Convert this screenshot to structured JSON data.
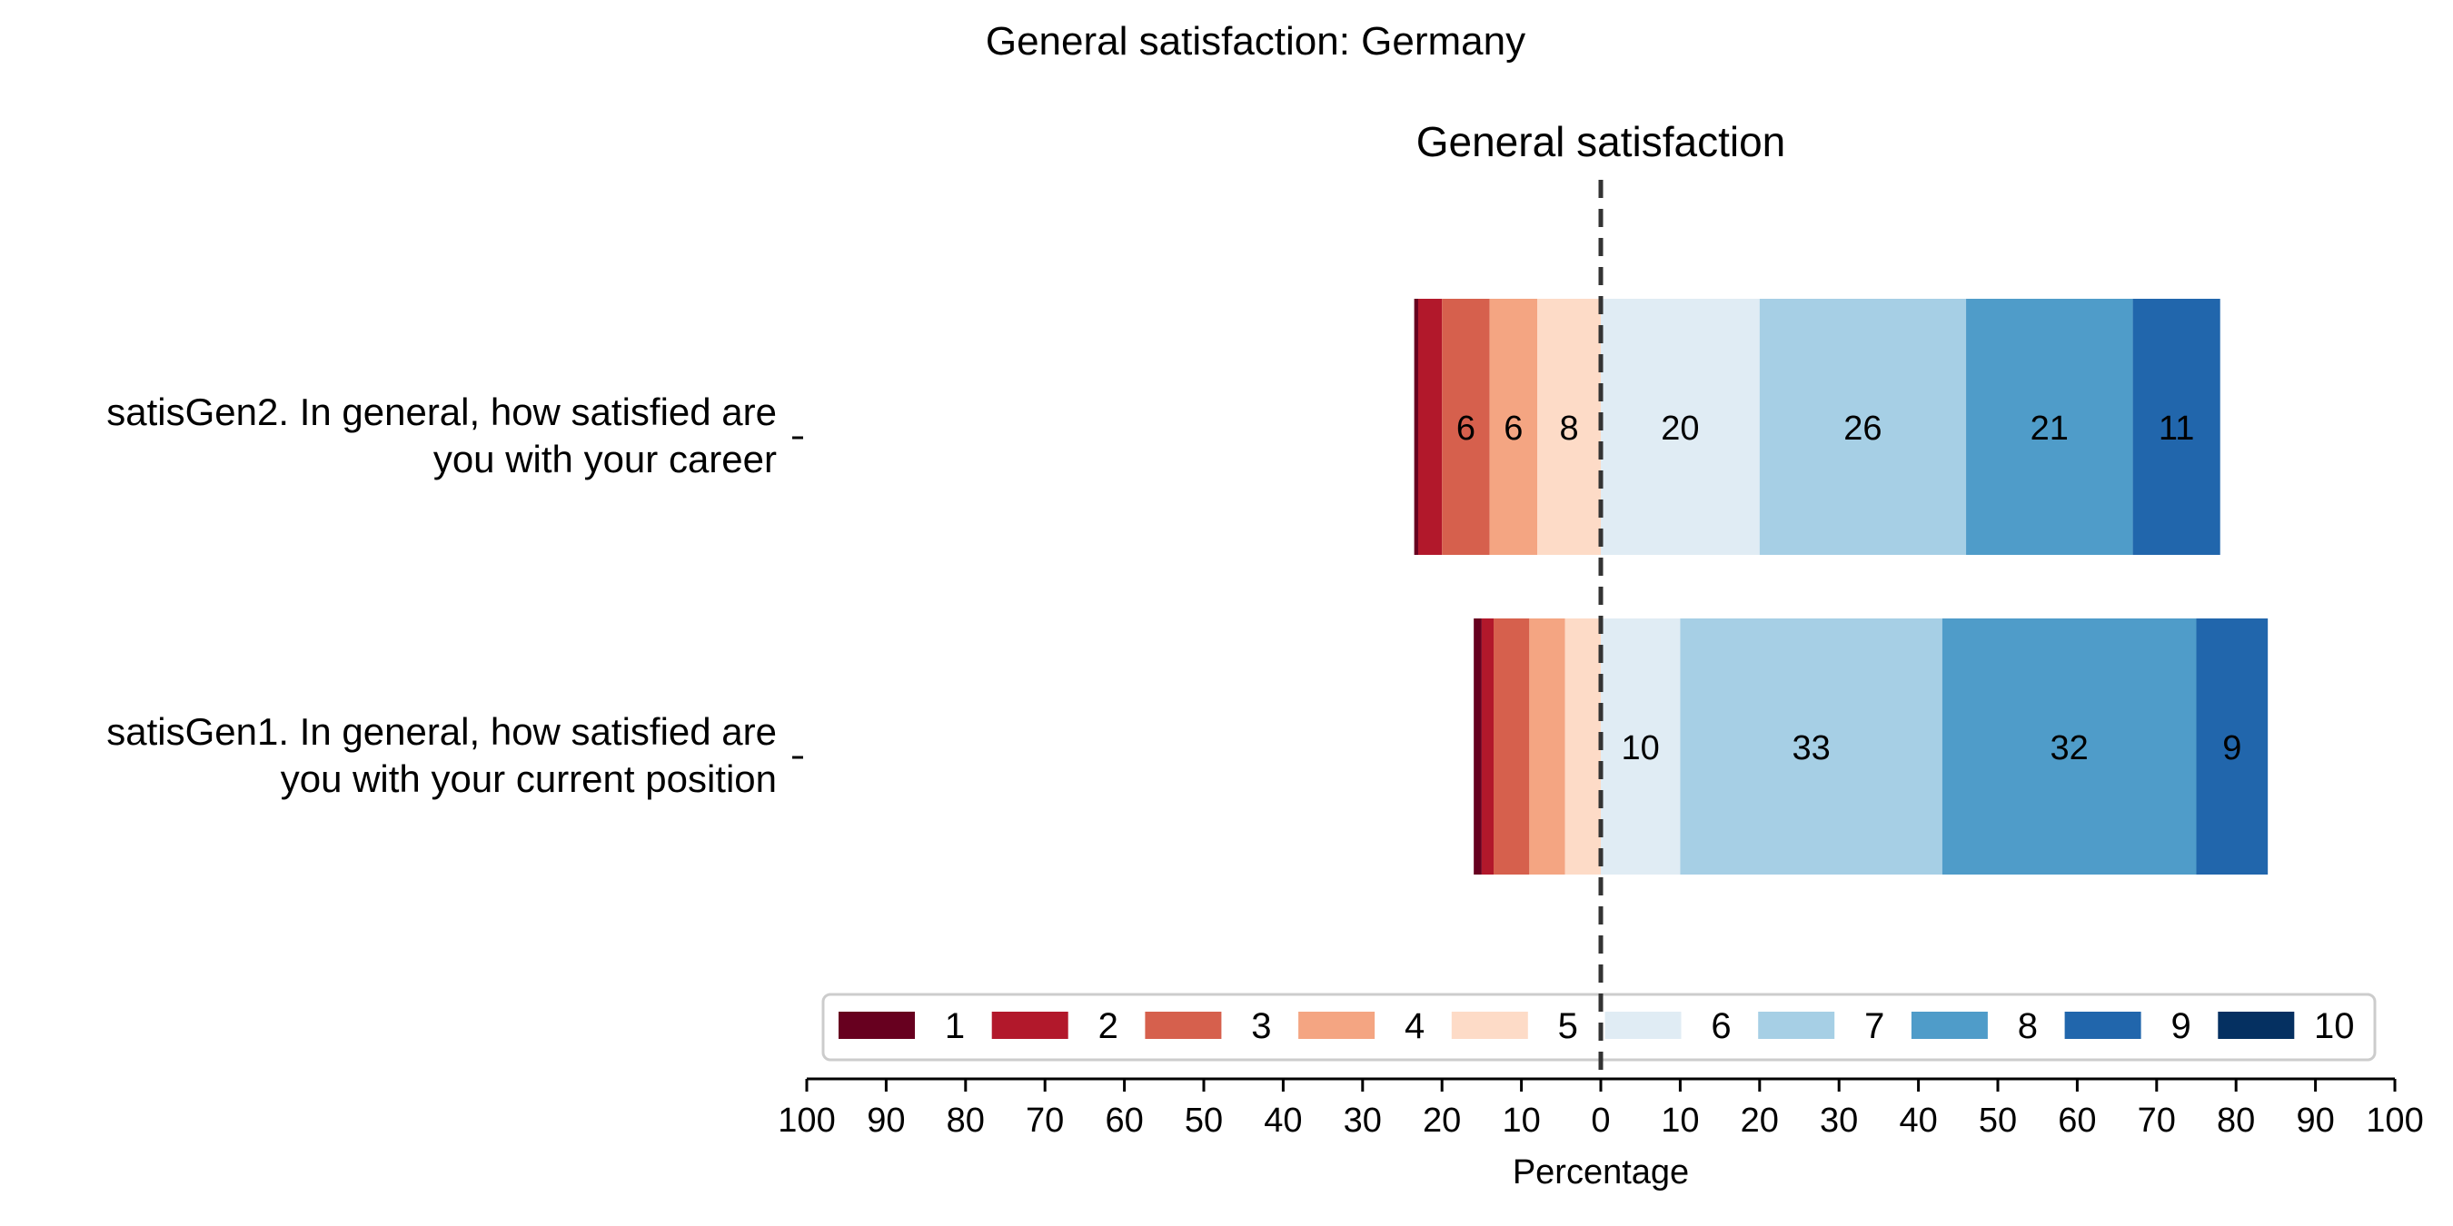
{
  "chart_data": {
    "type": "bar",
    "orientation": "horizontal",
    "stacked": "diverging",
    "title": "General satisfaction: Germany",
    "subtitle": "General satisfaction",
    "xlabel": "Percentage",
    "xlim": [
      -100,
      100
    ],
    "xticks": [
      -100,
      -90,
      -80,
      -70,
      -60,
      -50,
      -40,
      -30,
      -20,
      -10,
      0,
      10,
      20,
      30,
      40,
      50,
      60,
      70,
      80,
      90,
      100
    ],
    "xtick_labels": [
      "100",
      "90",
      "80",
      "70",
      "60",
      "50",
      "40",
      "30",
      "20",
      "10",
      "0",
      "10",
      "20",
      "30",
      "40",
      "50",
      "60",
      "70",
      "80",
      "90",
      "100"
    ],
    "categories": [
      [
        "satisGen2. In general, how satisfied are",
        "you with your career"
      ],
      [
        "satisGen1. In general, how satisfied are",
        "you with your current position"
      ]
    ],
    "series": [
      {
        "name": "1",
        "color": "#67001f",
        "values": [
          0.5,
          1.0
        ]
      },
      {
        "name": "2",
        "color": "#b2182b",
        "values": [
          3,
          1.5
        ]
      },
      {
        "name": "3",
        "color": "#d6604d",
        "values": [
          6,
          4.5
        ]
      },
      {
        "name": "4",
        "color": "#f4a582",
        "values": [
          6,
          4.5
        ]
      },
      {
        "name": "5",
        "color": "#fddbc7",
        "values": [
          8,
          4.5
        ]
      },
      {
        "name": "6",
        "color": "#e0ecf4",
        "values": [
          20,
          10
        ]
      },
      {
        "name": "7",
        "color": "#a6cfe5",
        "values": [
          26,
          33
        ]
      },
      {
        "name": "8",
        "color": "#4f9cc9",
        "values": [
          21,
          32
        ]
      },
      {
        "name": "9",
        "color": "#2166ac",
        "values": [
          11,
          9
        ]
      },
      {
        "name": "10",
        "color": "#053061",
        "values": [
          0,
          0
        ]
      }
    ],
    "center_series_split": "5|6",
    "data_labels": [
      [
        null,
        null,
        "6",
        "6",
        "8",
        "20",
        "26",
        "21",
        "11",
        null
      ],
      [
        null,
        null,
        null,
        null,
        null,
        "10",
        "33",
        "32",
        "9",
        null
      ]
    ],
    "legend_position": "bottom-center",
    "center_line": "dashed",
    "grid": false
  }
}
